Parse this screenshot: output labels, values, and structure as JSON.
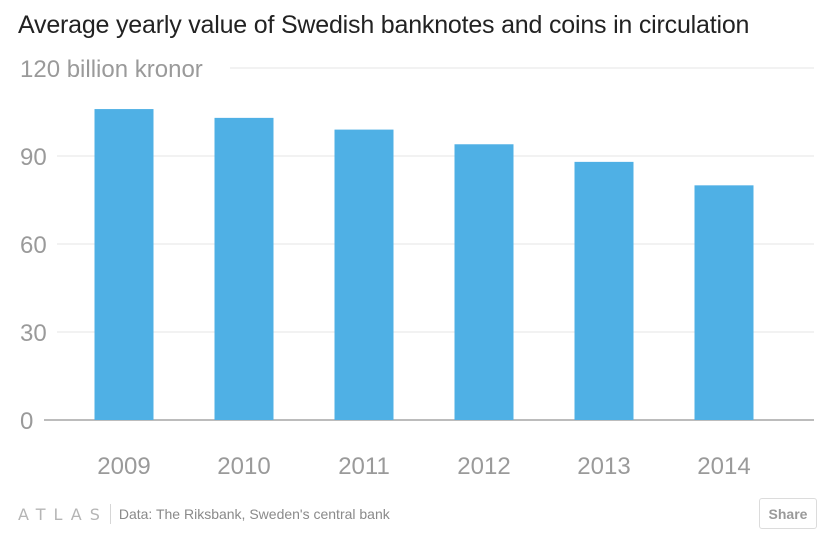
{
  "chart_data": {
    "type": "bar",
    "title": "Average yearly value of Swedish banknotes and coins in circulation",
    "ylabel": "billion kronor",
    "categories": [
      "2009",
      "2010",
      "2011",
      "2012",
      "2013",
      "2014"
    ],
    "values": [
      106,
      103,
      99,
      94,
      88,
      80
    ],
    "yticks": [
      0,
      30,
      60,
      90,
      120
    ],
    "ytick_labels": [
      "0",
      "30",
      "60",
      "90",
      "120 billion kronor"
    ],
    "ylim": [
      0,
      120
    ],
    "grid": true,
    "legend": "none",
    "bar_color": "#4fb0e5"
  },
  "footer": {
    "logo": "ATLAS",
    "source": "Data: The Riksbank, Sweden's central bank",
    "share_label": "Share"
  }
}
